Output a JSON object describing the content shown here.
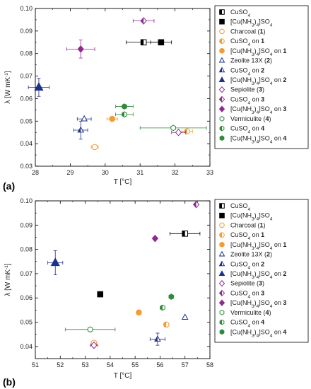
{
  "legend": [
    {
      "parts": [
        [
          "CuSO",
          ""
        ],
        [
          "4",
          "sub"
        ]
      ],
      "color": "#000000",
      "shape": "square",
      "fill": "half"
    },
    {
      "parts": [
        [
          "[Cu(NH",
          ""
        ],
        [
          "3",
          "sub"
        ],
        [
          ")",
          ""
        ],
        [
          "4",
          "sub"
        ],
        [
          "]SO",
          ""
        ],
        [
          "4",
          "sub"
        ]
      ],
      "color": "#000000",
      "shape": "square",
      "fill": "full"
    },
    {
      "parts": [
        [
          "Charcoal (",
          ""
        ],
        [
          "1",
          "bold"
        ],
        [
          ")",
          ""
        ]
      ],
      "color": "#f39c33",
      "shape": "circle",
      "fill": "open"
    },
    {
      "parts": [
        [
          "CuSO",
          ""
        ],
        [
          "4",
          "sub"
        ],
        [
          " on ",
          ""
        ],
        [
          "1",
          "bold"
        ]
      ],
      "color": "#f39c33",
      "shape": "circle",
      "fill": "half"
    },
    {
      "parts": [
        [
          "[Cu(NH",
          ""
        ],
        [
          "3",
          "sub"
        ],
        [
          ")",
          ""
        ],
        [
          "4",
          "sub"
        ],
        [
          "]SO",
          ""
        ],
        [
          "4",
          "sub"
        ],
        [
          " on ",
          ""
        ],
        [
          "1",
          "bold"
        ]
      ],
      "color": "#f39c33",
      "shape": "circle",
      "fill": "full"
    },
    {
      "parts": [
        [
          "Zeolite 13X (",
          ""
        ],
        [
          "2",
          "bold"
        ],
        [
          ")",
          ""
        ]
      ],
      "color": "#1f2f8c",
      "shape": "triangle",
      "fill": "open"
    },
    {
      "parts": [
        [
          "CuSO",
          ""
        ],
        [
          "4",
          "sub"
        ],
        [
          " on ",
          ""
        ],
        [
          "2",
          "bold"
        ]
      ],
      "color": "#1f2f8c",
      "shape": "triangle",
      "fill": "half"
    },
    {
      "parts": [
        [
          "[Cu(NH",
          ""
        ],
        [
          "3",
          "sub"
        ],
        [
          ")",
          ""
        ],
        [
          "4",
          "sub"
        ],
        [
          "]SO",
          ""
        ],
        [
          "4",
          "sub"
        ],
        [
          " on ",
          ""
        ],
        [
          "2",
          "bold"
        ]
      ],
      "color": "#1f2f8c",
      "shape": "triangle",
      "fill": "full"
    },
    {
      "parts": [
        [
          "Sepiolite (",
          ""
        ],
        [
          "3",
          "bold"
        ],
        [
          ")",
          ""
        ]
      ],
      "color": "#8e2a8e",
      "shape": "diamond",
      "fill": "open"
    },
    {
      "parts": [
        [
          "CuSO",
          ""
        ],
        [
          "4",
          "sub"
        ],
        [
          " on ",
          ""
        ],
        [
          "3",
          "bold"
        ]
      ],
      "color": "#8e2a8e",
      "shape": "diamond",
      "fill": "half"
    },
    {
      "parts": [
        [
          "[Cu(NH",
          ""
        ],
        [
          "3",
          "sub"
        ],
        [
          ")",
          ""
        ],
        [
          "4",
          "sub"
        ],
        [
          "]SO",
          ""
        ],
        [
          "4",
          "sub"
        ],
        [
          " on ",
          ""
        ],
        [
          "3",
          "bold"
        ]
      ],
      "color": "#8e2a8e",
      "shape": "diamond",
      "fill": "full"
    },
    {
      "parts": [
        [
          "Vermiculite (",
          ""
        ],
        [
          "4",
          "bold"
        ],
        [
          ")",
          ""
        ]
      ],
      "color": "#2e8b3a",
      "shape": "hexagon",
      "fill": "open"
    },
    {
      "parts": [
        [
          "CuSO",
          ""
        ],
        [
          "4",
          "sub"
        ],
        [
          " on ",
          ""
        ],
        [
          "4",
          "bold"
        ]
      ],
      "color": "#2e8b3a",
      "shape": "hexagon",
      "fill": "half"
    },
    {
      "parts": [
        [
          "[Cu(NH",
          ""
        ],
        [
          "3",
          "sub"
        ],
        [
          ")",
          ""
        ],
        [
          "4",
          "sub"
        ],
        [
          "]SO",
          ""
        ],
        [
          "4",
          "sub"
        ],
        [
          " on ",
          ""
        ],
        [
          "4",
          "bold"
        ]
      ],
      "color": "#2e8b3a",
      "shape": "hexagon",
      "fill": "full"
    }
  ],
  "chart_data": [
    {
      "type": "scatter",
      "panel_label": "(a)",
      "xlabel": "T [°C]",
      "ylabel_parts": [
        [
          "λ [W mK",
          ""
        ],
        [
          "-1",
          "sup"
        ],
        [
          "]",
          ""
        ]
      ],
      "xlim": [
        28,
        33
      ],
      "ylim": [
        0.03,
        0.1
      ],
      "xticks": [
        "28",
        "29",
        "30",
        "31",
        "32",
        "33"
      ],
      "yticks": [
        "0.03",
        "0.04",
        "0.05",
        "0.06",
        "0.07",
        "0.08",
        "0.09",
        "0.10"
      ],
      "points": [
        {
          "series": 0,
          "x": 31.1,
          "y": 0.085,
          "xerr": 0.5,
          "yerr": 0
        },
        {
          "series": 1,
          "x": 31.6,
          "y": 0.085,
          "xerr": 0.3,
          "yerr": 0
        },
        {
          "series": 2,
          "x": 29.7,
          "y": 0.0385,
          "xerr": 0.1,
          "yerr": 0
        },
        {
          "series": 3,
          "x": 32.35,
          "y": 0.0455,
          "xerr": 0.15,
          "yerr": 0
        },
        {
          "series": 4,
          "x": 30.2,
          "y": 0.051,
          "xerr": 0.15,
          "yerr": 0
        },
        {
          "series": 5,
          "x": 29.4,
          "y": 0.051,
          "xerr": 0.2,
          "yerr": 0
        },
        {
          "series": 6,
          "x": 29.3,
          "y": 0.046,
          "xerr": 0.2,
          "yerr": 0.004
        },
        {
          "series": 7,
          "x": 28.1,
          "y": 0.065,
          "xerr": 0.3,
          "yerr": 0.004
        },
        {
          "series": 8,
          "x": 32.1,
          "y": 0.045,
          "xerr": 0.2,
          "yerr": 0
        },
        {
          "series": 9,
          "x": 31.1,
          "y": 0.0945,
          "xerr": 0.3,
          "yerr": 0
        },
        {
          "series": 10,
          "x": 29.3,
          "y": 0.082,
          "xerr": 0.4,
          "yerr": 0.004
        },
        {
          "series": 11,
          "x": 31.95,
          "y": 0.047,
          "xerr": 0.95,
          "yerr": 0
        },
        {
          "series": 12,
          "x": 30.55,
          "y": 0.053,
          "xerr": 0.25,
          "yerr": 0
        },
        {
          "series": 13,
          "x": 30.55,
          "y": 0.0565,
          "xerr": 0.25,
          "yerr": 0
        }
      ]
    },
    {
      "type": "scatter",
      "panel_label": "(b)",
      "xlabel": "T [°C]",
      "ylabel_parts": [
        [
          "λ [W mK",
          ""
        ],
        [
          "-1",
          "sup"
        ],
        [
          "]",
          ""
        ]
      ],
      "xlim": [
        51,
        58
      ],
      "ylim": [
        0.035,
        0.1
      ],
      "xticks": [
        "51",
        "52",
        "53",
        "54",
        "55",
        "56",
        "57",
        "58"
      ],
      "yticks": [
        "0.04",
        "0.05",
        "0.06",
        "0.07",
        "0.08",
        "0.09",
        "0.10"
      ],
      "points": [
        {
          "series": 0,
          "x": 57.0,
          "y": 0.0865,
          "xerr": 0.6,
          "yerr": 0
        },
        {
          "series": 1,
          "x": 53.6,
          "y": 0.0615,
          "xerr": 0,
          "yerr": 0
        },
        {
          "series": 2,
          "x": 53.35,
          "y": 0.0415,
          "xerr": 0.1,
          "yerr": 0
        },
        {
          "series": 3,
          "x": 56.25,
          "y": 0.049,
          "xerr": 0,
          "yerr": 0
        },
        {
          "series": 4,
          "x": 55.15,
          "y": 0.054,
          "xerr": 0,
          "yerr": 0
        },
        {
          "series": 5,
          "x": 57.0,
          "y": 0.052,
          "xerr": 0,
          "yerr": 0
        },
        {
          "series": 6,
          "x": 55.9,
          "y": 0.043,
          "xerr": 0.3,
          "yerr": 0.0025
        },
        {
          "series": 7,
          "x": 51.8,
          "y": 0.0745,
          "xerr": 0.3,
          "yerr": 0.005
        },
        {
          "series": 8,
          "x": 53.35,
          "y": 0.0405,
          "xerr": 0.15,
          "yerr": 0
        },
        {
          "series": 9,
          "x": 57.45,
          "y": 0.0985,
          "xerr": 0,
          "yerr": 0
        },
        {
          "series": 10,
          "x": 55.8,
          "y": 0.0845,
          "xerr": 0,
          "yerr": 0
        },
        {
          "series": 11,
          "x": 53.2,
          "y": 0.047,
          "xerr": 1.0,
          "yerr": 0
        },
        {
          "series": 12,
          "x": 56.1,
          "y": 0.056,
          "xerr": 0,
          "yerr": 0
        },
        {
          "series": 13,
          "x": 56.45,
          "y": 0.0605,
          "xerr": 0,
          "yerr": 0
        }
      ]
    }
  ]
}
